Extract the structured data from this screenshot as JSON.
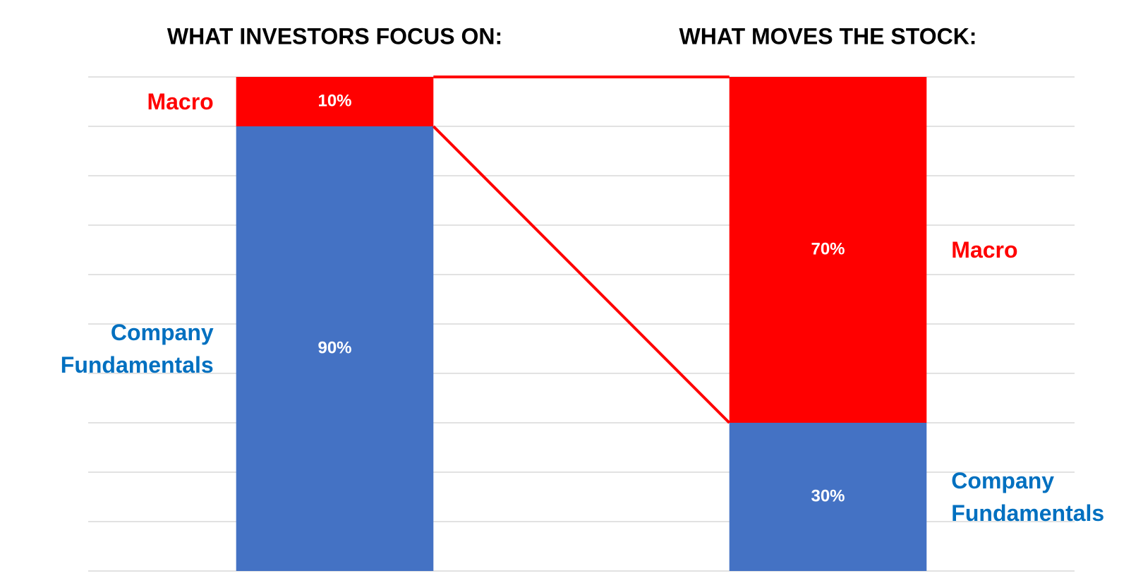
{
  "chart_data": {
    "type": "stacked_bar",
    "categories": [
      "WHAT INVESTORS FOCUS ON:",
      "WHAT MOVES THE STOCK:"
    ],
    "series": [
      {
        "name": "Company Fundamentals",
        "color": "#4472c4",
        "label_color": "#0070c0",
        "values": [
          90,
          30
        ],
        "value_labels": [
          "90%",
          "30%"
        ]
      },
      {
        "name": "Macro",
        "color": "#ff0000",
        "label_color": "#ff0000",
        "values": [
          10,
          70
        ],
        "value_labels": [
          "10%",
          "70%"
        ]
      }
    ],
    "ylim": [
      0,
      100
    ],
    "yticks": [
      0,
      10,
      20,
      30,
      40,
      50,
      60,
      70,
      80,
      90,
      100
    ],
    "grid": true
  }
}
